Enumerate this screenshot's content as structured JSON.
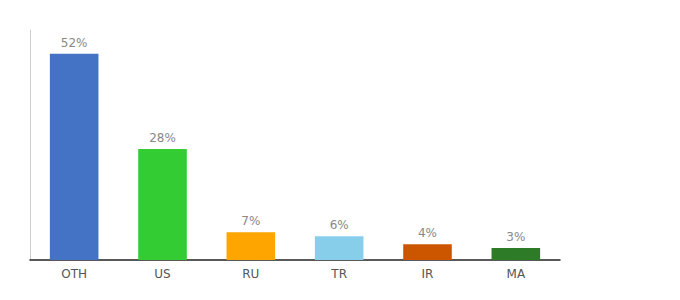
{
  "chart_data": {
    "type": "bar",
    "categories": [
      "OTH",
      "US",
      "RU",
      "TR",
      "IR",
      "MA"
    ],
    "values": [
      52,
      28,
      7,
      6,
      4,
      3
    ],
    "value_labels": [
      "52%",
      "28%",
      "7%",
      "6%",
      "4%",
      "3%"
    ],
    "colors": [
      "#4472C4",
      "#33CC33",
      "#FFA500",
      "#87CEEB",
      "#CC5500",
      "#2D7A27"
    ],
    "data_labels": true,
    "ylim": [
      0,
      58
    ],
    "tick_labels": "x",
    "grid": false
  }
}
